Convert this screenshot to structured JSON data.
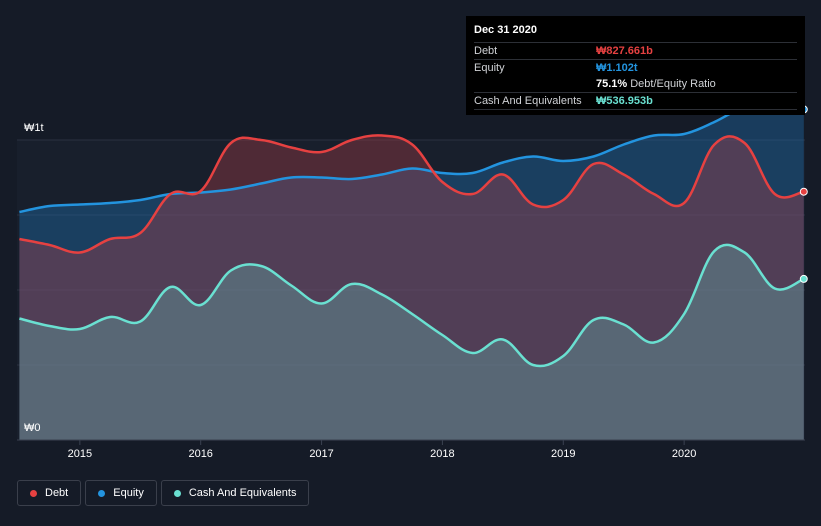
{
  "chart_data": {
    "type": "area",
    "title": "",
    "xlabel": "",
    "ylabel": "",
    "y_unit": "₩",
    "ylim": [
      0,
      1.2
    ],
    "y_ticks": [
      {
        "value": 1.0,
        "label": "₩1t"
      },
      {
        "value": 0,
        "label": "₩0"
      }
    ],
    "x_ticks": [
      2015,
      2016,
      2017,
      2018,
      2019,
      2020
    ],
    "x_range": [
      2014.48,
      2021.0
    ],
    "gridlines": true,
    "series": [
      {
        "name": "Equity",
        "color": "#2394df",
        "points": [
          [
            2014.5,
            0.76
          ],
          [
            2014.75,
            0.78
          ],
          [
            2015.0,
            0.785
          ],
          [
            2015.25,
            0.79
          ],
          [
            2015.5,
            0.8
          ],
          [
            2015.75,
            0.82
          ],
          [
            2016.0,
            0.825
          ],
          [
            2016.25,
            0.835
          ],
          [
            2016.5,
            0.855
          ],
          [
            2016.75,
            0.875
          ],
          [
            2017.0,
            0.875
          ],
          [
            2017.25,
            0.87
          ],
          [
            2017.5,
            0.885
          ],
          [
            2017.75,
            0.905
          ],
          [
            2018.0,
            0.89
          ],
          [
            2018.25,
            0.89
          ],
          [
            2018.5,
            0.925
          ],
          [
            2018.75,
            0.945
          ],
          [
            2019.0,
            0.93
          ],
          [
            2019.25,
            0.945
          ],
          [
            2019.5,
            0.985
          ],
          [
            2019.75,
            1.015
          ],
          [
            2020.0,
            1.02
          ],
          [
            2020.25,
            1.06
          ],
          [
            2020.5,
            1.11
          ],
          [
            2020.75,
            1.125
          ],
          [
            2020.99,
            1.102
          ]
        ]
      },
      {
        "name": "Debt",
        "color": "#e64141",
        "points": [
          [
            2014.5,
            0.67
          ],
          [
            2014.75,
            0.65
          ],
          [
            2015.0,
            0.625
          ],
          [
            2015.25,
            0.67
          ],
          [
            2015.5,
            0.69
          ],
          [
            2015.75,
            0.82
          ],
          [
            2016.0,
            0.83
          ],
          [
            2016.25,
            0.99
          ],
          [
            2016.5,
            1.0
          ],
          [
            2016.75,
            0.975
          ],
          [
            2017.0,
            0.96
          ],
          [
            2017.25,
            1.0
          ],
          [
            2017.5,
            1.015
          ],
          [
            2017.75,
            0.985
          ],
          [
            2018.0,
            0.86
          ],
          [
            2018.25,
            0.82
          ],
          [
            2018.5,
            0.885
          ],
          [
            2018.75,
            0.785
          ],
          [
            2019.0,
            0.8
          ],
          [
            2019.25,
            0.92
          ],
          [
            2019.5,
            0.885
          ],
          [
            2019.75,
            0.82
          ],
          [
            2020.0,
            0.79
          ],
          [
            2020.25,
            0.985
          ],
          [
            2020.5,
            0.99
          ],
          [
            2020.75,
            0.82
          ],
          [
            2020.99,
            0.8277
          ]
        ]
      },
      {
        "name": "Cash And Equivalents",
        "color": "#6ae0d1",
        "points": [
          [
            2014.5,
            0.405
          ],
          [
            2014.75,
            0.38
          ],
          [
            2015.0,
            0.37
          ],
          [
            2015.25,
            0.41
          ],
          [
            2015.5,
            0.395
          ],
          [
            2015.75,
            0.51
          ],
          [
            2016.0,
            0.45
          ],
          [
            2016.25,
            0.565
          ],
          [
            2016.5,
            0.58
          ],
          [
            2016.75,
            0.515
          ],
          [
            2017.0,
            0.455
          ],
          [
            2017.25,
            0.52
          ],
          [
            2017.5,
            0.485
          ],
          [
            2017.75,
            0.42
          ],
          [
            2018.0,
            0.35
          ],
          [
            2018.25,
            0.29
          ],
          [
            2018.5,
            0.335
          ],
          [
            2018.75,
            0.25
          ],
          [
            2019.0,
            0.28
          ],
          [
            2019.25,
            0.4
          ],
          [
            2019.5,
            0.385
          ],
          [
            2019.75,
            0.325
          ],
          [
            2020.0,
            0.42
          ],
          [
            2020.25,
            0.63
          ],
          [
            2020.5,
            0.625
          ],
          [
            2020.75,
            0.505
          ],
          [
            2020.99,
            0.537
          ]
        ]
      }
    ]
  },
  "tooltip": {
    "date": "Dec 31 2020",
    "debt_label": "Debt",
    "debt_value": "₩827.661b",
    "equity_label": "Equity",
    "equity_value": "₩1.102t",
    "ratio_value": "75.1%",
    "ratio_label": "Debt/Equity Ratio",
    "cash_label": "Cash And Equivalents",
    "cash_value": "₩536.953b"
  },
  "legend": [
    {
      "label": "Debt",
      "color": "#e64141"
    },
    {
      "label": "Equity",
      "color": "#2394df"
    },
    {
      "label": "Cash And Equivalents",
      "color": "#6ae0d1"
    }
  ]
}
